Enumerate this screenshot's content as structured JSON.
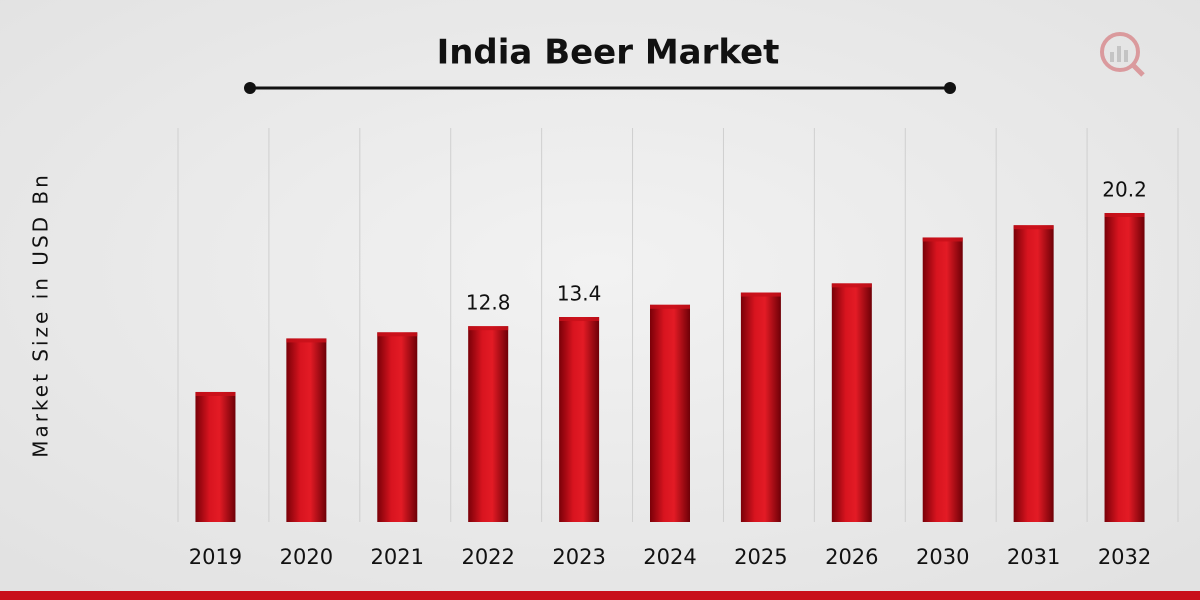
{
  "chart_data": {
    "type": "bar",
    "title": "India Beer Market",
    "y_label": "Market Size in USD Bn",
    "categories": [
      "2019",
      "2020",
      "2021",
      "2022",
      "2023",
      "2024",
      "2025",
      "2026",
      "2030",
      "2031",
      "2032"
    ],
    "values": [
      8.5,
      12.0,
      12.4,
      12.8,
      13.4,
      14.2,
      15.0,
      15.6,
      18.6,
      19.4,
      20.2
    ],
    "value_labels": [
      null,
      null,
      null,
      "12.8",
      "13.4",
      null,
      null,
      null,
      null,
      null,
      "20.2"
    ],
    "color": "#c8101a",
    "grid": true
  }
}
